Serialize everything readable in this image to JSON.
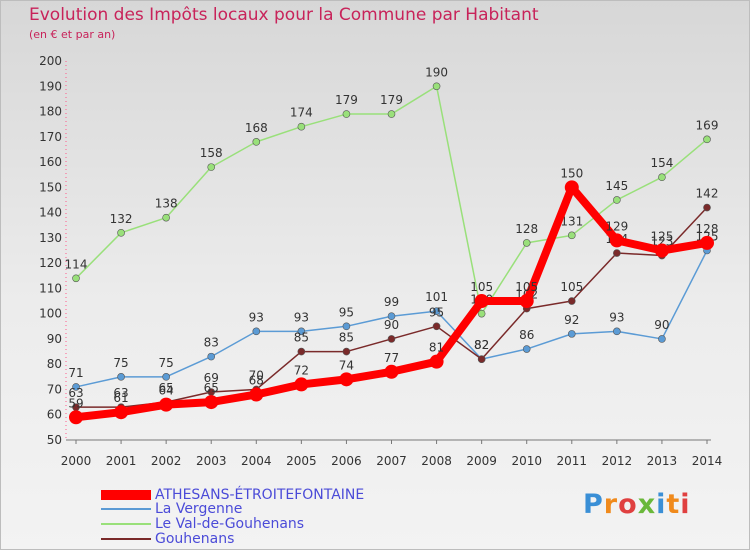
{
  "title": "Evolution des Impôts locaux pour la Commune par Habitant",
  "subtitle": "(en € et par an)",
  "brand": "Proxiti",
  "chart_data": {
    "type": "line",
    "x": [
      "2000",
      "2001",
      "2002",
      "2003",
      "2004",
      "2005",
      "2006",
      "2007",
      "2008",
      "2009",
      "2010",
      "2011",
      "2012",
      "2013",
      "2014"
    ],
    "ylim": [
      50,
      200
    ],
    "yticks": [
      50,
      60,
      70,
      80,
      90,
      100,
      110,
      120,
      130,
      140,
      150,
      160,
      170,
      180,
      190,
      200
    ],
    "grid": false,
    "legend_position": "bottom",
    "series": [
      {
        "name": "ATHESANS-ÉTROITEFONTAINE",
        "color": "#ff0000",
        "values": [
          59,
          61,
          64,
          65,
          68,
          72,
          74,
          77,
          81,
          105,
          105,
          150,
          129,
          125,
          128
        ]
      },
      {
        "name": "La Vergenne",
        "color": "#5b9bd5",
        "values": [
          71,
          75,
          75,
          83,
          93,
          93,
          95,
          99,
          101,
          82,
          86,
          92,
          93,
          90,
          125
        ]
      },
      {
        "name": "Le Val-de-Gouhenans",
        "color": "#99e07a",
        "values": [
          114,
          132,
          138,
          158,
          168,
          174,
          179,
          179,
          190,
          100,
          128,
          131,
          145,
          154,
          169
        ]
      },
      {
        "name": "Gouhenans",
        "color": "#7a2a2a",
        "values": [
          63,
          63,
          65,
          69,
          70,
          85,
          85,
          90,
          95,
          82,
          102,
          105,
          124,
          123,
          142
        ]
      }
    ]
  }
}
